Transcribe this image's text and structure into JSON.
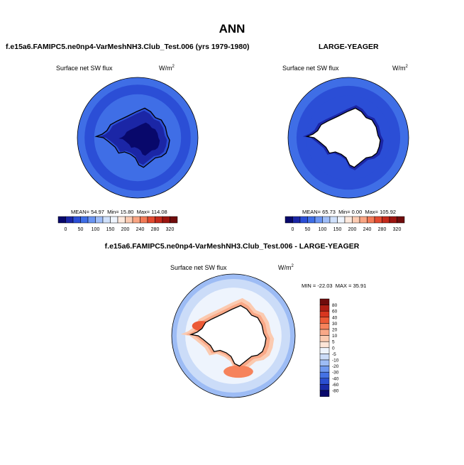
{
  "main_title": "ANN",
  "panels": {
    "test": {
      "title": "f.e15a6.FAMIPC5.ne0np4-VarMeshNH3.Club_Test.006 (yrs 1979-1980)",
      "field": "Surface net SW flux",
      "units": "W/m",
      "units_sup": "2",
      "stats": {
        "mean_label": "MEAN=",
        "mean": "54.97",
        "min_label": "Min=",
        "min": "15.80",
        "max_label": "Max=",
        "max": "114.08"
      }
    },
    "obs": {
      "title": "LARGE-YEAGER",
      "field": "Surface net SW flux",
      "units": "W/m",
      "units_sup": "2",
      "stats": {
        "mean_label": "MEAN=",
        "mean": "65.73",
        "min_label": "Min=",
        "min": "0.00",
        "max_label": "Max=",
        "max": "105.92"
      }
    },
    "diff": {
      "title": "f.e15a6.FAMIPC5.ne0np4-VarMeshNH3.Club_Test.006 - LARGE-YEAGER",
      "field": "Surface net SW flux",
      "units": "W/m",
      "units_sup": "2",
      "stats": {
        "min_label": "MIN =",
        "min": "-22.03",
        "max_label": "MAX =",
        "max": "35.91"
      }
    }
  },
  "chart_data": [
    {
      "type": "heatmap",
      "panel": "test",
      "projection": "south-polar-stereographic",
      "colorbar": {
        "orientation": "horizontal",
        "placement": "bottom",
        "levels": [
          0,
          50,
          100,
          150,
          200,
          240,
          280,
          320
        ],
        "colors": [
          "#08086b",
          "#1b26a6",
          "#2b4ed6",
          "#3f6ee6",
          "#6b95f2",
          "#9fbdf8",
          "#cfe0fb",
          "#eef4fd",
          "#fde9dd",
          "#fccbb2",
          "#f9a583",
          "#f27a57",
          "#e24a30",
          "#c42a1c",
          "#9c1510",
          "#700c0c"
        ]
      }
    },
    {
      "type": "heatmap",
      "panel": "obs",
      "projection": "south-polar-stereographic",
      "colorbar": {
        "orientation": "horizontal",
        "placement": "bottom",
        "levels": [
          0,
          50,
          100,
          150,
          200,
          240,
          280,
          320
        ],
        "colors": [
          "#08086b",
          "#1b26a6",
          "#2b4ed6",
          "#3f6ee6",
          "#6b95f2",
          "#9fbdf8",
          "#cfe0fb",
          "#eef4fd",
          "#fde9dd",
          "#fccbb2",
          "#f9a583",
          "#f27a57",
          "#e24a30",
          "#c42a1c",
          "#9c1510",
          "#700c0c"
        ]
      }
    },
    {
      "type": "heatmap",
      "panel": "diff",
      "projection": "south-polar-stereographic",
      "colorbar": {
        "orientation": "vertical",
        "placement": "right",
        "levels": [
          80,
          60,
          40,
          30,
          20,
          10,
          5,
          0,
          -5,
          -10,
          -20,
          -30,
          -40,
          -60,
          -80
        ],
        "colors": [
          "#700c0c",
          "#b01e14",
          "#d8361f",
          "#ec5a36",
          "#f6835c",
          "#f9a887",
          "#fbcab0",
          "#fde5d7",
          "#eef4fd",
          "#cbdcf8",
          "#9dbcf5",
          "#6f98ef",
          "#4572e4",
          "#2b4fd0",
          "#1a2ca8",
          "#08086b"
        ]
      }
    }
  ]
}
